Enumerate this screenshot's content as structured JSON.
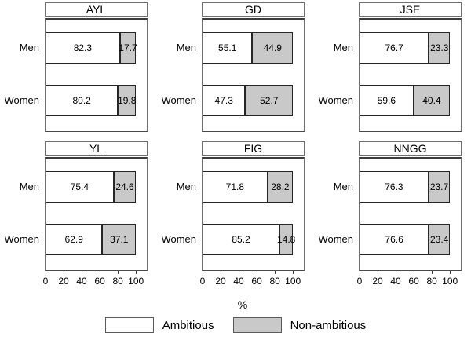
{
  "chart_data": {
    "type": "bar",
    "orientation": "horizontal",
    "stacked": true,
    "xlabel": "%",
    "xlim": [
      0,
      112
    ],
    "ticks": [
      0,
      20,
      40,
      60,
      80,
      100
    ],
    "grid": "off",
    "legend_position": "bottom",
    "series": [
      "Ambitious",
      "Non-ambitious"
    ],
    "categories": [
      "Men",
      "Women"
    ],
    "colors": {
      "ambitious": "#ffffff",
      "non_ambitious": "#c9c9c9",
      "outline": "#262626"
    },
    "legend_items": [
      {
        "label": "Ambitious",
        "color": "#ffffff"
      },
      {
        "label": "Non-ambitious",
        "color": "#c9c9c9"
      }
    ],
    "panels": [
      {
        "title": "AYL",
        "rows": [
          {
            "label": "Men",
            "values": [
              82.3,
              17.7
            ]
          },
          {
            "label": "Women",
            "values": [
              80.2,
              19.8
            ]
          }
        ]
      },
      {
        "title": "GD",
        "rows": [
          {
            "label": "Men",
            "values": [
              55.1,
              44.9
            ]
          },
          {
            "label": "Women",
            "values": [
              47.3,
              52.7
            ]
          }
        ]
      },
      {
        "title": "JSE",
        "rows": [
          {
            "label": "Men",
            "values": [
              76.7,
              23.3
            ]
          },
          {
            "label": "Women",
            "values": [
              59.6,
              40.4
            ]
          }
        ]
      },
      {
        "title": "YL",
        "rows": [
          {
            "label": "Men",
            "values": [
              75.4,
              24.6
            ]
          },
          {
            "label": "Women",
            "values": [
              62.9,
              37.1
            ]
          }
        ]
      },
      {
        "title": "FIG",
        "rows": [
          {
            "label": "Men",
            "values": [
              71.8,
              28.2
            ]
          },
          {
            "label": "Women",
            "values": [
              85.2,
              14.8
            ]
          }
        ]
      },
      {
        "title": "NNGG",
        "rows": [
          {
            "label": "Men",
            "values": [
              76.3,
              23.7
            ]
          },
          {
            "label": "Women",
            "values": [
              76.6,
              23.4
            ]
          }
        ]
      }
    ]
  }
}
